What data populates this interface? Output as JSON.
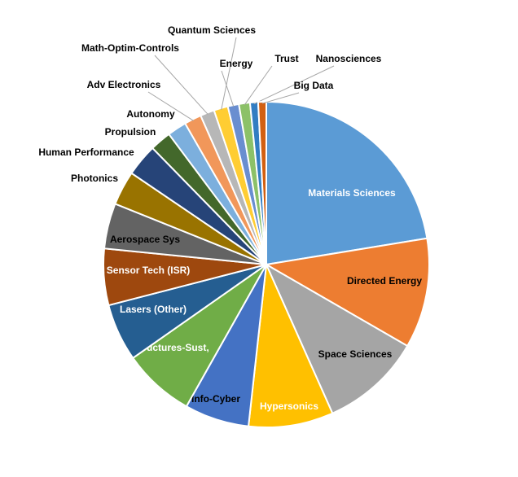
{
  "chart_data": {
    "type": "pie",
    "categories": [
      "Materials Sciences",
      "Directed Energy",
      "Space Sciences",
      "Hypersonics",
      "Info-Cyber",
      "Structures-Sust,",
      "Lasers (Other)",
      "Sensor Tech (ISR)",
      "Aerospace Sys",
      "Photonics",
      "Human Performance",
      "Propulsion",
      "Autonomy",
      "Adv Electronics",
      "Math-Optim-Controls",
      "Quantum Sciences",
      "Energy",
      "Trust",
      "Nanosciences",
      "Big Data"
    ],
    "values": [
      22.4,
      10.9,
      10,
      8.4,
      6.4,
      7.1,
      5.7,
      5.6,
      4.5,
      3.4,
      3.2,
      2.1,
      1.9,
      1.7,
      1.4,
      1.4,
      1.1,
      1.1,
      0.8,
      0.8
    ],
    "colors": [
      "#5b9bd5",
      "#ed7d31",
      "#a5a5a5",
      "#ffc000",
      "#4472c4",
      "#70ad47",
      "#255e91",
      "#9e480e",
      "#636363",
      "#997300",
      "#264478",
      "#43682b",
      "#7cafdd",
      "#f1975a",
      "#b7b7b7",
      "#ffcd33",
      "#698ed0",
      "#8cc168",
      "#327dc2",
      "#d26012"
    ]
  }
}
